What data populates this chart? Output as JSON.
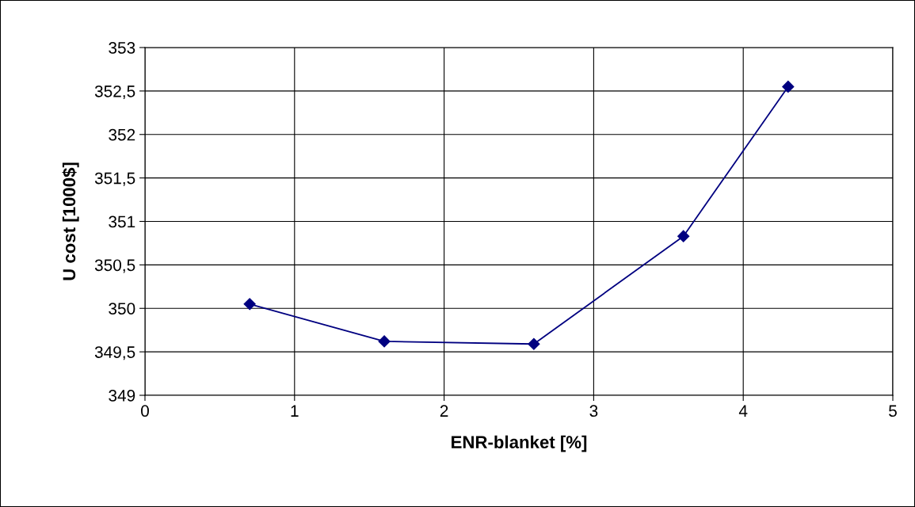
{
  "chart_data": {
    "type": "line",
    "xlabel": "ENR-blanket [%]",
    "ylabel": "U cost [1000$]",
    "x": [
      0.7,
      1.6,
      2.6,
      3.6,
      4.3
    ],
    "series": [
      {
        "color": "#000080",
        "values": [
          350.05,
          349.62,
          349.59,
          350.83,
          352.55
        ]
      }
    ],
    "xlim": [
      0,
      5
    ],
    "xticks": [
      0,
      1,
      2,
      3,
      4,
      5
    ],
    "ylim": [
      349,
      353
    ],
    "yticks": [
      {
        "value": 349,
        "label": "349"
      },
      {
        "value": 349.5,
        "label": "349,5"
      },
      {
        "value": 350,
        "label": "350"
      },
      {
        "value": 350.5,
        "label": "350,5"
      },
      {
        "value": 351,
        "label": "351"
      },
      {
        "value": 351.5,
        "label": "351,5"
      },
      {
        "value": 352,
        "label": "352"
      },
      {
        "value": 352.5,
        "label": "352,5"
      },
      {
        "value": 353,
        "label": "353"
      }
    ],
    "grid": true,
    "marker": "diamond",
    "line_style": "solid",
    "legend": false
  }
}
